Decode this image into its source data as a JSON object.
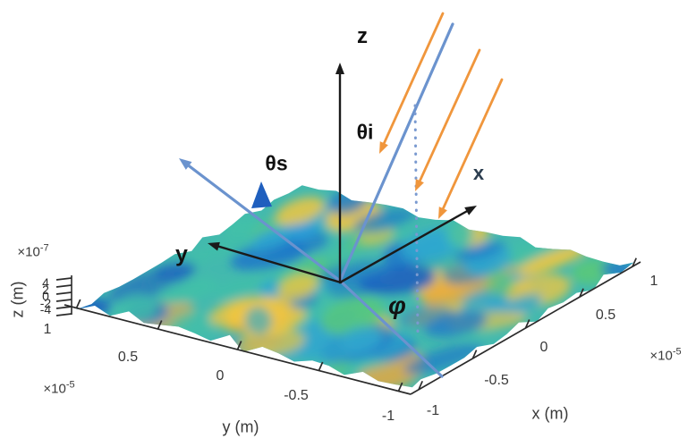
{
  "figure": {
    "type": "3d-surface-scattering-geometry",
    "background": "#ffffff"
  },
  "palette": {
    "axis_line": "#2b2b2b",
    "arrow_black": "#1a1a1a",
    "arrow_blue": "#6b93ce",
    "arrow_orange": "#f0963c",
    "dotted_blue": "#7a9ad0",
    "tick_text": "#383838",
    "surface_base": "#43b9ae",
    "surface_blobs": [
      "#f2c63f",
      "#eda73b",
      "#2fa8cf",
      "#1f78c8",
      "#41c0a8",
      "#5ac878",
      "#2a9fd8",
      "#1b5fc0"
    ],
    "surface_peak": "#1f5fbe"
  },
  "axes": {
    "x": {
      "label": "x (m)",
      "ticks": [
        "-1",
        "-0.5",
        "0",
        "0.5",
        "1"
      ],
      "scale_base": "×10",
      "scale_exp": "-5"
    },
    "y": {
      "label": "y (m)",
      "ticks": [
        "1",
        "0.5",
        "0",
        "-0.5",
        "-1"
      ],
      "scale_base": "×10",
      "scale_exp": "-5"
    },
    "z": {
      "label": "z (m)",
      "ticks": [
        "4",
        "2",
        "0",
        "-2",
        "-4"
      ],
      "scale_base": "×10",
      "scale_exp": "-7"
    }
  },
  "annotations": {
    "z_axis": "z",
    "incident_angle": "θi",
    "scattered_angle": "θs",
    "x_axis": "x",
    "y_axis": "y",
    "azimuth_angle": "φ"
  },
  "chart_data": {
    "type": "surface",
    "title": "",
    "xlabel": "x (m)",
    "ylabel": "y (m)",
    "zlabel": "z (m)",
    "x_ticks": [
      -1,
      -0.5,
      0,
      0.5,
      1
    ],
    "y_ticks": [
      -1,
      -0.5,
      0,
      0.5,
      1
    ],
    "z_ticks": [
      -4,
      -2,
      0,
      2,
      4
    ],
    "x_scale": 1e-05,
    "y_scale": 1e-05,
    "z_scale": 1e-07,
    "xlim": [
      -1e-05,
      1e-05
    ],
    "ylim": [
      -1e-05,
      1e-05
    ],
    "zlim": [
      -4e-07,
      4e-07
    ],
    "grid": false,
    "legend": "none",
    "colormap": "parula",
    "surface_description": "random rough surface height field z(x,y) over ±1e-5 m square, heights within ±4e-7 m",
    "annotations": [
      "z",
      "θi",
      "θs",
      "x",
      "y",
      "φ"
    ],
    "geometry": {
      "incident_rays": 3,
      "incident_ray_color": "orange",
      "incident_direction_color": "blue",
      "scattered_direction_color": "blue",
      "angles": {
        "incident": "θi",
        "scattered": "θs",
        "azimuth": "φ"
      }
    }
  }
}
